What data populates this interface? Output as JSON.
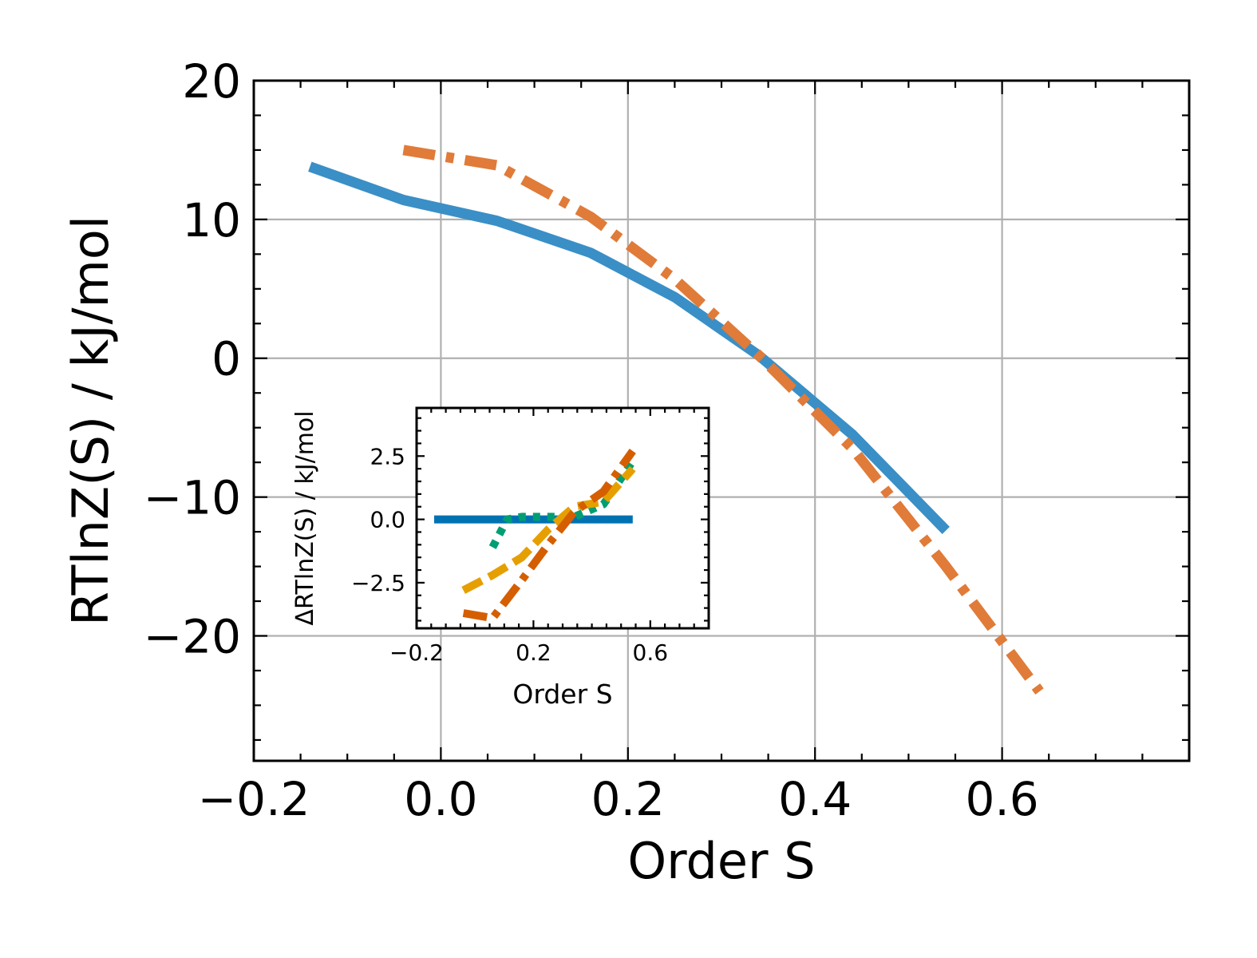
{
  "chart_data": [
    {
      "type": "line",
      "xlabel": "Order S",
      "ylabel": "RTlnZ(S) / kJ/mol",
      "xlim": [
        -0.2,
        0.8
      ],
      "ylim": [
        -29,
        20
      ],
      "xticks": [
        -0.2,
        0.0,
        0.2,
        0.4,
        0.6
      ],
      "xtick_labels": [
        "−0.2",
        "0.0",
        "0.2",
        "0.4",
        "0.6"
      ],
      "yticks": [
        20,
        10,
        0,
        -10,
        -20
      ],
      "ytick_labels": [
        "20",
        "10",
        "0",
        "−10",
        "−20"
      ],
      "grid": true,
      "series": [
        {
          "color": "#3a8fc6",
          "style": "solid",
          "x": [
            -0.14,
            -0.04,
            0.06,
            0.16,
            0.25,
            0.34,
            0.44,
            0.54
          ],
          "y": [
            13.8,
            11.4,
            9.9,
            7.6,
            4.4,
            0.2,
            -5.5,
            -12.4
          ]
        },
        {
          "color": "#e07b39",
          "style": "dashdot",
          "x": [
            -0.04,
            0.06,
            0.16,
            0.25,
            0.34,
            0.44,
            0.54,
            0.64
          ],
          "y": [
            15.0,
            13.9,
            10.2,
            5.7,
            0.2,
            -6.5,
            -15.0,
            -24.0
          ]
        }
      ]
    },
    {
      "type": "line",
      "xlabel": "Order S",
      "ylabel": "ΔRTlnZ(S) / kJ/mol",
      "xlim": [
        -0.2,
        0.8
      ],
      "ylim": [
        -4.3,
        4.4
      ],
      "xticks": [
        -0.2,
        0.2,
        0.6
      ],
      "xtick_labels": [
        "−0.2",
        "0.2",
        "0.6"
      ],
      "yticks": [
        2.5,
        0.0,
        -2.5
      ],
      "ytick_labels": [
        "2.5",
        "0.0",
        "−2.5"
      ],
      "grid": false,
      "series": [
        {
          "color": "#0072b2",
          "style": "solid",
          "x": [
            -0.14,
            0.54
          ],
          "y": [
            0.0,
            0.0
          ]
        },
        {
          "color": "#009e73",
          "style": "dotted",
          "x": [
            0.06,
            0.11,
            0.16,
            0.25,
            0.34,
            0.44,
            0.54
          ],
          "y": [
            -1.1,
            0.0,
            0.1,
            0.1,
            0.1,
            0.6,
            2.3
          ]
        },
        {
          "color": "#e69f00",
          "style": "dashed",
          "x": [
            -0.04,
            0.06,
            0.16,
            0.25,
            0.34,
            0.44,
            0.54
          ],
          "y": [
            -2.8,
            -2.2,
            -1.5,
            -0.4,
            0.5,
            0.7,
            2.0
          ]
        },
        {
          "color": "#d55e00",
          "style": "dashdot",
          "x": [
            -0.04,
            0.06,
            0.16,
            0.25,
            0.34,
            0.44,
            0.54
          ],
          "y": [
            -3.7,
            -3.9,
            -2.4,
            -1.0,
            0.3,
            1.1,
            2.7
          ]
        }
      ]
    }
  ]
}
